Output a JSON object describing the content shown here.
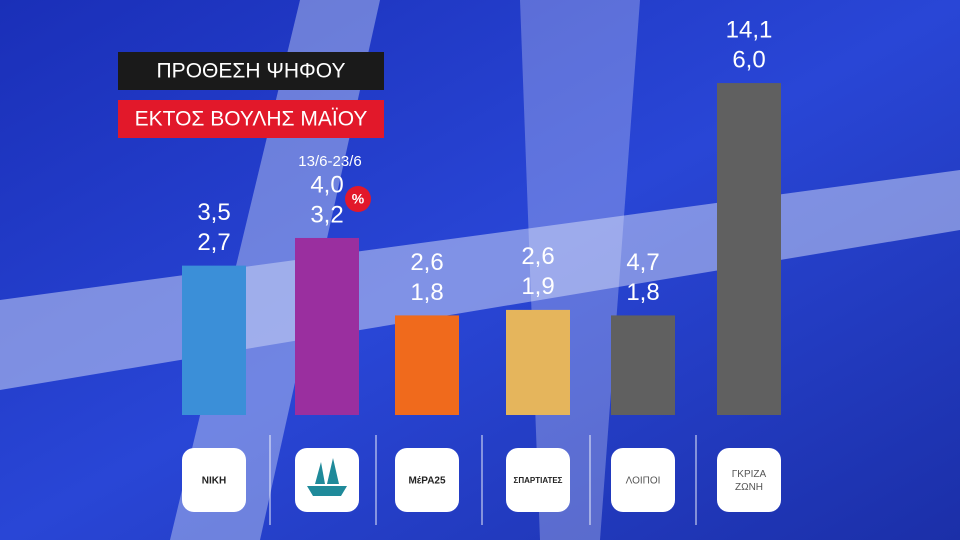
{
  "chart_data": {
    "type": "bar",
    "title": "ΠΡΟΘΕΣΗ ΨΗΦΟΥ",
    "subtitle": "ΕΚΤΟΣ ΒΟΥΛΗΣ ΜΑΪΟΥ",
    "date_range": "13/6-23/6",
    "unit": "%",
    "categories": [
      "ΝΙΚΗ",
      null,
      "ΜέΡΑ25",
      "ΣΠΑΡΤΙΑΤΕΣ",
      "ΛΟΙΠΟΙ",
      "ΓΚΡΙΖΑ ΖΩΝΗ"
    ],
    "values": [
      2.7,
      3.2,
      1.8,
      1.9,
      1.8,
      6.0
    ],
    "value_labels": [
      "2,7",
      "3,2",
      "1,8",
      "1,9",
      "1,8",
      "6,0"
    ],
    "reference_values": [
      3.5,
      4.0,
      2.6,
      2.6,
      4.7,
      14.1
    ],
    "reference_labels": [
      "3,5",
      "4,0",
      "2,6",
      "2,6",
      "4,7",
      "14,1"
    ],
    "colors": [
      "#3b8fd8",
      "#9a2f9f",
      "#f06a1c",
      "#e5b55c",
      "#606060",
      "#606060"
    ],
    "ylim": [
      0,
      6.2
    ]
  }
}
